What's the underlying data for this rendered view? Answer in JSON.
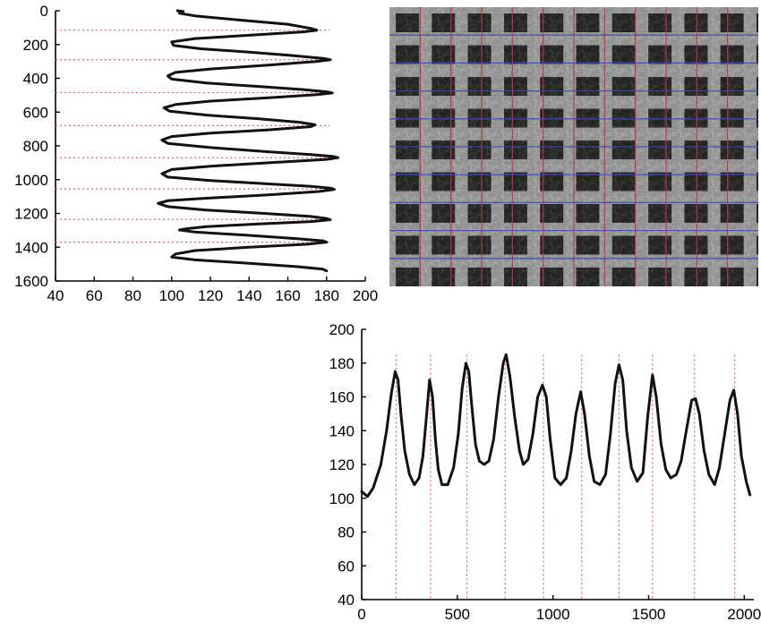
{
  "chart_data": [
    {
      "type": "line",
      "orientation": "vertical-profile",
      "x_ticks": [
        "40",
        "60",
        "80",
        "100",
        "120",
        "140",
        "160",
        "180",
        "200"
      ],
      "y_ticks": [
        "0",
        "200",
        "400",
        "600",
        "800",
        "1000",
        "1200",
        "1400",
        "1600"
      ],
      "xlim": [
        40,
        200
      ],
      "ylim": [
        1600,
        0
      ],
      "peak_rows": [
        115,
        290,
        485,
        680,
        870,
        1055,
        1235,
        1370
      ],
      "profile_points": [
        [
          103,
          0
        ],
        [
          106,
          5
        ],
        [
          104,
          15
        ],
        [
          112,
          30
        ],
        [
          135,
          55
        ],
        [
          160,
          80
        ],
        [
          172,
          105
        ],
        [
          175,
          115
        ],
        [
          168,
          125
        ],
        [
          140,
          145
        ],
        [
          112,
          165
        ],
        [
          100,
          185
        ],
        [
          101,
          205
        ],
        [
          115,
          225
        ],
        [
          140,
          245
        ],
        [
          162,
          265
        ],
        [
          178,
          282
        ],
        [
          182,
          290
        ],
        [
          175,
          300
        ],
        [
          150,
          322
        ],
        [
          120,
          345
        ],
        [
          102,
          365
        ],
        [
          98,
          385
        ],
        [
          100,
          405
        ],
        [
          118,
          428
        ],
        [
          145,
          448
        ],
        [
          168,
          467
        ],
        [
          180,
          480
        ],
        [
          183,
          487
        ],
        [
          175,
          497
        ],
        [
          150,
          515
        ],
        [
          120,
          535
        ],
        [
          102,
          555
        ],
        [
          96,
          575
        ],
        [
          99,
          595
        ],
        [
          118,
          618
        ],
        [
          145,
          640
        ],
        [
          166,
          660
        ],
        [
          174,
          675
        ],
        [
          172,
          686
        ],
        [
          150,
          705
        ],
        [
          120,
          725
        ],
        [
          100,
          745
        ],
        [
          95,
          765
        ],
        [
          98,
          785
        ],
        [
          120,
          810
        ],
        [
          150,
          835
        ],
        [
          172,
          852
        ],
        [
          183,
          862
        ],
        [
          186,
          870
        ],
        [
          180,
          880
        ],
        [
          150,
          900
        ],
        [
          120,
          920
        ],
        [
          100,
          940
        ],
        [
          95,
          965
        ],
        [
          98,
          985
        ],
        [
          120,
          1005
        ],
        [
          150,
          1025
        ],
        [
          172,
          1040
        ],
        [
          182,
          1050
        ],
        [
          184,
          1058
        ],
        [
          176,
          1070
        ],
        [
          150,
          1090
        ],
        [
          118,
          1110
        ],
        [
          98,
          1125
        ],
        [
          93,
          1140
        ],
        [
          98,
          1160
        ],
        [
          118,
          1180
        ],
        [
          148,
          1200
        ],
        [
          172,
          1218
        ],
        [
          180,
          1230
        ],
        [
          182,
          1237
        ],
        [
          172,
          1248
        ],
        [
          145,
          1262
        ],
        [
          118,
          1278
        ],
        [
          108,
          1290
        ],
        [
          104,
          1298
        ],
        [
          112,
          1310
        ],
        [
          140,
          1330
        ],
        [
          165,
          1350
        ],
        [
          178,
          1362
        ],
        [
          180,
          1370
        ],
        [
          170,
          1382
        ],
        [
          140,
          1400
        ],
        [
          112,
          1420
        ],
        [
          102,
          1440
        ],
        [
          100,
          1458
        ],
        [
          112,
          1475
        ],
        [
          140,
          1495
        ],
        [
          165,
          1515
        ],
        [
          178,
          1530
        ],
        [
          180,
          1540
        ]
      ]
    },
    {
      "type": "image-grid",
      "description_visible": false,
      "vertical_lines": 11,
      "horizontal_lines": 9
    },
    {
      "type": "line",
      "x_ticks": [
        "0",
        "500",
        "1000",
        "1500",
        "2000"
      ],
      "y_ticks": [
        "200",
        "180",
        "160",
        "140",
        "120",
        "100",
        "80",
        "60",
        "40"
      ],
      "xlim": [
        0,
        2050
      ],
      "ylim": [
        40,
        200
      ],
      "peak_positions": [
        180,
        360,
        550,
        750,
        950,
        1150,
        1345,
        1520,
        1740,
        1950
      ],
      "series_points": [
        [
          0,
          104
        ],
        [
          30,
          101
        ],
        [
          60,
          106
        ],
        [
          100,
          120
        ],
        [
          130,
          140
        ],
        [
          155,
          162
        ],
        [
          175,
          175
        ],
        [
          190,
          170
        ],
        [
          205,
          150
        ],
        [
          225,
          128
        ],
        [
          250,
          114
        ],
        [
          275,
          108
        ],
        [
          300,
          112
        ],
        [
          320,
          125
        ],
        [
          340,
          150
        ],
        [
          355,
          170
        ],
        [
          370,
          160
        ],
        [
          385,
          135
        ],
        [
          400,
          117
        ],
        [
          420,
          108
        ],
        [
          450,
          108
        ],
        [
          480,
          118
        ],
        [
          505,
          138
        ],
        [
          525,
          165
        ],
        [
          545,
          180
        ],
        [
          560,
          175
        ],
        [
          575,
          155
        ],
        [
          595,
          132
        ],
        [
          615,
          122
        ],
        [
          640,
          120
        ],
        [
          665,
          122
        ],
        [
          690,
          135
        ],
        [
          715,
          160
        ],
        [
          740,
          180
        ],
        [
          755,
          185
        ],
        [
          775,
          172
        ],
        [
          800,
          148
        ],
        [
          825,
          128
        ],
        [
          845,
          120
        ],
        [
          870,
          123
        ],
        [
          895,
          138
        ],
        [
          920,
          160
        ],
        [
          945,
          167
        ],
        [
          965,
          160
        ],
        [
          985,
          135
        ],
        [
          1010,
          112
        ],
        [
          1040,
          108
        ],
        [
          1070,
          112
        ],
        [
          1095,
          128
        ],
        [
          1120,
          150
        ],
        [
          1145,
          163
        ],
        [
          1165,
          150
        ],
        [
          1190,
          125
        ],
        [
          1215,
          110
        ],
        [
          1245,
          108
        ],
        [
          1275,
          114
        ],
        [
          1300,
          138
        ],
        [
          1325,
          168
        ],
        [
          1345,
          179
        ],
        [
          1365,
          170
        ],
        [
          1385,
          140
        ],
        [
          1410,
          118
        ],
        [
          1440,
          110
        ],
        [
          1470,
          115
        ],
        [
          1495,
          148
        ],
        [
          1520,
          173
        ],
        [
          1540,
          160
        ],
        [
          1565,
          132
        ],
        [
          1590,
          117
        ],
        [
          1615,
          112
        ],
        [
          1645,
          114
        ],
        [
          1670,
          122
        ],
        [
          1700,
          142
        ],
        [
          1725,
          158
        ],
        [
          1745,
          159
        ],
        [
          1765,
          150
        ],
        [
          1790,
          128
        ],
        [
          1815,
          114
        ],
        [
          1845,
          108
        ],
        [
          1870,
          118
        ],
        [
          1900,
          140
        ],
        [
          1925,
          158
        ],
        [
          1945,
          164
        ],
        [
          1965,
          150
        ],
        [
          1985,
          125
        ],
        [
          2010,
          110
        ],
        [
          2030,
          102
        ]
      ]
    }
  ]
}
